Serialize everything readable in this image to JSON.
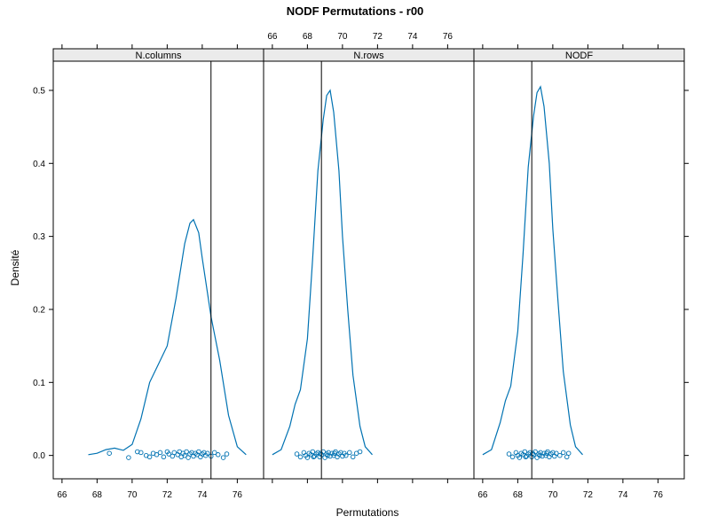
{
  "chart_data": {
    "type": "density",
    "title": "NODF Permutations - r00",
    "xlabel": "Permutations",
    "ylabel": "Densité",
    "xlim": [
      65.5,
      77.5
    ],
    "ylim": [
      -0.032,
      0.54
    ],
    "x_ticks": [
      66,
      68,
      70,
      72,
      74,
      76
    ],
    "y_ticks": [
      0.0,
      0.1,
      0.2,
      0.3,
      0.4,
      0.5
    ],
    "y_tick_labels": [
      "0.0",
      "0.1",
      "0.2",
      "0.3",
      "0.4",
      "0.5"
    ],
    "colors": {
      "curve": "#0072b2",
      "points": "#0072b2",
      "reference_line": "#000000",
      "strip": "#ebebeb"
    },
    "panels": [
      {
        "name": "N.columns",
        "reference_line": 74.5,
        "curve": [
          [
            67.5,
            0.001
          ],
          [
            68.0,
            0.003
          ],
          [
            68.5,
            0.008
          ],
          [
            69.0,
            0.01
          ],
          [
            69.5,
            0.007
          ],
          [
            70.0,
            0.015
          ],
          [
            70.5,
            0.05
          ],
          [
            71.0,
            0.1
          ],
          [
            71.5,
            0.125
          ],
          [
            72.0,
            0.15
          ],
          [
            72.5,
            0.215
          ],
          [
            73.0,
            0.29
          ],
          [
            73.3,
            0.318
          ],
          [
            73.5,
            0.323
          ],
          [
            73.8,
            0.305
          ],
          [
            74.0,
            0.27
          ],
          [
            74.5,
            0.19
          ],
          [
            75.0,
            0.13
          ],
          [
            75.5,
            0.055
          ],
          [
            76.0,
            0.012
          ],
          [
            76.5,
            0.001
          ]
        ],
        "points": [
          [
            68.7,
            0.003
          ],
          [
            69.8,
            -0.003
          ],
          [
            70.3,
            0.005
          ],
          [
            70.5,
            0.004
          ],
          [
            70.8,
            0.0
          ],
          [
            71.0,
            -0.002
          ],
          [
            71.2,
            0.003
          ],
          [
            71.4,
            0.001
          ],
          [
            71.6,
            0.004
          ],
          [
            71.8,
            -0.002
          ],
          [
            72.0,
            0.005
          ],
          [
            72.1,
            0.002
          ],
          [
            72.3,
            -0.001
          ],
          [
            72.4,
            0.004
          ],
          [
            72.6,
            0.001
          ],
          [
            72.7,
            0.005
          ],
          [
            72.8,
            -0.002
          ],
          [
            72.9,
            0.003
          ],
          [
            73.0,
            0.0
          ],
          [
            73.1,
            0.005
          ],
          [
            73.2,
            -0.003
          ],
          [
            73.3,
            0.002
          ],
          [
            73.4,
            0.004
          ],
          [
            73.5,
            -0.001
          ],
          [
            73.6,
            0.003
          ],
          [
            73.7,
            0.001
          ],
          [
            73.8,
            0.005
          ],
          [
            73.9,
            -0.002
          ],
          [
            74.0,
            0.002
          ],
          [
            74.1,
            0.004
          ],
          [
            74.2,
            0.0
          ],
          [
            74.3,
            0.003
          ],
          [
            74.5,
            -0.001
          ],
          [
            74.7,
            0.004
          ],
          [
            74.9,
            0.001
          ],
          [
            75.2,
            -0.003
          ],
          [
            75.4,
            0.002
          ]
        ]
      },
      {
        "name": "N.rows",
        "reference_line": 68.8,
        "curve": [
          [
            66.0,
            0.001
          ],
          [
            66.5,
            0.008
          ],
          [
            67.0,
            0.04
          ],
          [
            67.3,
            0.07
          ],
          [
            67.6,
            0.09
          ],
          [
            68.0,
            0.16
          ],
          [
            68.3,
            0.27
          ],
          [
            68.6,
            0.39
          ],
          [
            68.9,
            0.46
          ],
          [
            69.1,
            0.493
          ],
          [
            69.3,
            0.5
          ],
          [
            69.5,
            0.47
          ],
          [
            69.8,
            0.39
          ],
          [
            70.0,
            0.3
          ],
          [
            70.3,
            0.2
          ],
          [
            70.6,
            0.11
          ],
          [
            71.0,
            0.04
          ],
          [
            71.3,
            0.012
          ],
          [
            71.7,
            0.001
          ]
        ],
        "points": [
          [
            67.4,
            0.002
          ],
          [
            67.6,
            -0.002
          ],
          [
            67.8,
            0.004
          ],
          [
            67.9,
            0.0
          ],
          [
            68.0,
            -0.003
          ],
          [
            68.1,
            0.003
          ],
          [
            68.2,
            0.001
          ],
          [
            68.3,
            0.005
          ],
          [
            68.4,
            -0.001
          ],
          [
            68.5,
            0.002
          ],
          [
            68.6,
            0.004
          ],
          [
            68.7,
            -0.002
          ],
          [
            68.8,
            0.001
          ],
          [
            68.9,
            0.005
          ],
          [
            69.0,
            -0.003
          ],
          [
            69.1,
            0.002
          ],
          [
            69.2,
            0.004
          ],
          [
            69.3,
            -0.001
          ],
          [
            69.4,
            0.003
          ],
          [
            69.5,
            0.0
          ],
          [
            69.6,
            0.005
          ],
          [
            69.7,
            -0.002
          ],
          [
            69.8,
            0.002
          ],
          [
            69.9,
            0.004
          ],
          [
            70.0,
            -0.001
          ],
          [
            70.1,
            0.003
          ],
          [
            70.2,
            0.0
          ],
          [
            70.4,
            0.004
          ],
          [
            70.6,
            -0.002
          ],
          [
            70.8,
            0.003
          ],
          [
            71.0,
            0.005
          ],
          [
            68.35,
            -0.002
          ],
          [
            68.75,
            0.003
          ],
          [
            69.15,
            0.0
          ],
          [
            69.55,
            0.003
          ]
        ]
      },
      {
        "name": "NODF",
        "reference_line": 68.8,
        "curve": [
          [
            66.0,
            0.001
          ],
          [
            66.5,
            0.008
          ],
          [
            67.0,
            0.045
          ],
          [
            67.3,
            0.075
          ],
          [
            67.6,
            0.095
          ],
          [
            68.0,
            0.17
          ],
          [
            68.3,
            0.275
          ],
          [
            68.6,
            0.395
          ],
          [
            68.9,
            0.465
          ],
          [
            69.1,
            0.497
          ],
          [
            69.3,
            0.505
          ],
          [
            69.5,
            0.478
          ],
          [
            69.8,
            0.4
          ],
          [
            70.0,
            0.31
          ],
          [
            70.3,
            0.21
          ],
          [
            70.6,
            0.115
          ],
          [
            71.0,
            0.042
          ],
          [
            71.3,
            0.012
          ],
          [
            71.7,
            0.001
          ]
        ],
        "points": [
          [
            67.5,
            0.002
          ],
          [
            67.7,
            -0.002
          ],
          [
            67.9,
            0.004
          ],
          [
            68.0,
            0.0
          ],
          [
            68.1,
            -0.003
          ],
          [
            68.2,
            0.003
          ],
          [
            68.3,
            0.001
          ],
          [
            68.4,
            0.005
          ],
          [
            68.5,
            -0.001
          ],
          [
            68.6,
            0.002
          ],
          [
            68.7,
            0.004
          ],
          [
            68.8,
            -0.002
          ],
          [
            68.9,
            0.001
          ],
          [
            69.0,
            0.005
          ],
          [
            69.1,
            -0.003
          ],
          [
            69.2,
            0.002
          ],
          [
            69.3,
            0.004
          ],
          [
            69.4,
            -0.001
          ],
          [
            69.5,
            0.003
          ],
          [
            69.6,
            0.0
          ],
          [
            69.7,
            0.005
          ],
          [
            69.8,
            -0.002
          ],
          [
            69.9,
            0.002
          ],
          [
            70.0,
            0.004
          ],
          [
            70.1,
            -0.001
          ],
          [
            70.2,
            0.003
          ],
          [
            70.4,
            0.0
          ],
          [
            70.6,
            0.004
          ],
          [
            70.8,
            -0.002
          ],
          [
            70.9,
            0.003
          ],
          [
            68.45,
            -0.002
          ],
          [
            68.85,
            0.003
          ],
          [
            69.25,
            0.0
          ],
          [
            69.65,
            0.003
          ]
        ]
      }
    ]
  }
}
